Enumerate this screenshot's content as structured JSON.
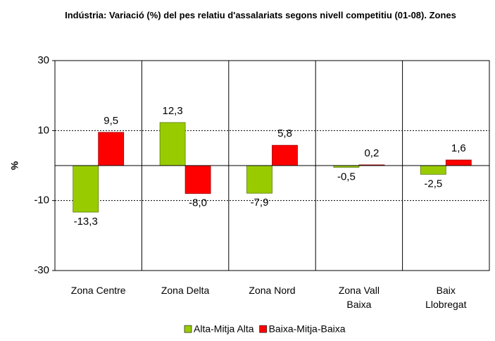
{
  "chart_data": {
    "type": "bar",
    "title": "Indústria: Variació (%)  del pes relatiu d'assalariats segons nivell competitiu (01-08). Zones",
    "y_label": "%",
    "categories": [
      "Zona Centre",
      "Zona Delta",
      "Zona Nord",
      "Zona Vall Baixa",
      "Baix Llobregat"
    ],
    "series": [
      {
        "name": "Alta-Mitja Alta",
        "color": "#99cc00",
        "values": [
          -13.3,
          12.3,
          -7.9,
          -0.5,
          -2.5
        ],
        "value_labels": [
          "-13,3",
          "12,3",
          "-7,9",
          "-0,5",
          "-2,5"
        ]
      },
      {
        "name": "Baixa-Mitja-Baixa",
        "color": "#ff0000",
        "values": [
          9.5,
          -8.0,
          5.8,
          0.2,
          1.6
        ],
        "value_labels": [
          "9,5",
          "-8,0",
          "5,8",
          "0,2",
          "1,6"
        ]
      }
    ],
    "ylim": [
      -30,
      30
    ],
    "yticks": [
      -30,
      -10,
      10,
      30
    ],
    "grid": true,
    "legend": "bottom"
  }
}
